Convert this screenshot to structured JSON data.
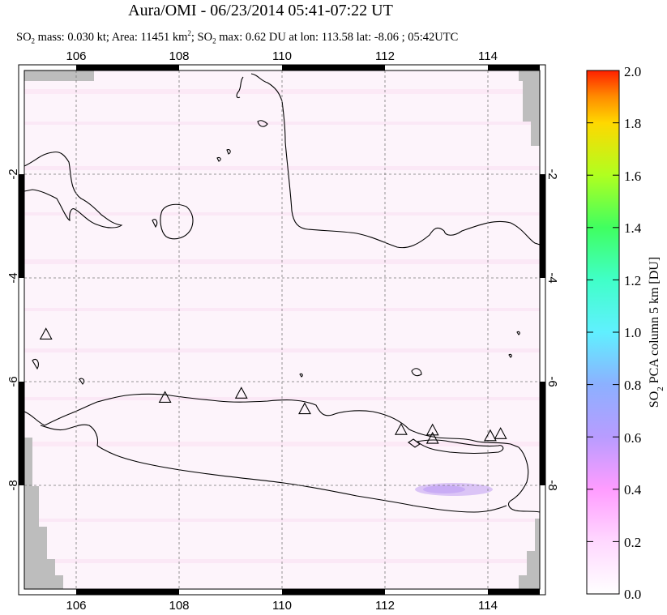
{
  "title": "Aura/OMI - 06/23/2014 05:41-07:22 UT",
  "subtitle": {
    "mass": "SO2 mass: 0.030 kt; Area: 11451 km2; SO2 max: 0.62 DU at lon: 113.58 lat: -8.06 ; 05:42UTC",
    "p1": "SO",
    "p2": " mass: 0.030 kt; Area: 11451 km",
    "p3": "; SO",
    "p4": " max: 0.62 DU at lon: 113.58 lat: -8.06 ; 05:42UTC",
    "sub": "2",
    "sup": "2"
  },
  "map": {
    "lon_ticks": [
      "106",
      "108",
      "110",
      "112",
      "114"
    ],
    "lat_ticks": [
      "-2",
      "-4",
      "-6",
      "-8"
    ],
    "lon_range": [
      105,
      115
    ],
    "lat_range": [
      -1,
      -11
    ],
    "volcanoes": [
      {
        "lon": 105.42,
        "lat": -6.1
      },
      {
        "lon": 107.73,
        "lat": -7.32
      },
      {
        "lon": 109.21,
        "lat": -7.24
      },
      {
        "lon": 110.44,
        "lat": -7.54
      },
      {
        "lon": 112.31,
        "lat": -7.94
      },
      {
        "lon": 112.92,
        "lat": -7.95
      },
      {
        "lon": 112.92,
        "lat": -8.11
      },
      {
        "lon": 114.04,
        "lat": -8.06
      },
      {
        "lon": 114.24,
        "lat": -8.02
      }
    ]
  },
  "colorbar": {
    "label": "SO2 PCA column 5 km [DU]",
    "label_main": "SO",
    "label_sub": "2",
    "label_rest": " PCA column 5 km [DU]",
    "ticks": [
      "0.0",
      "0.2",
      "0.4",
      "0.6",
      "0.8",
      "1.0",
      "1.2",
      "1.4",
      "1.6",
      "1.8",
      "2.0"
    ],
    "colors": [
      "#ffffff",
      "#ffd0ff",
      "#ff9cff",
      "#c090ff",
      "#8c9cff",
      "#60e8ff",
      "#40ffc0",
      "#30ff40",
      "#c0ff20",
      "#ffd000",
      "#ff8000",
      "#ff2000"
    ]
  }
}
